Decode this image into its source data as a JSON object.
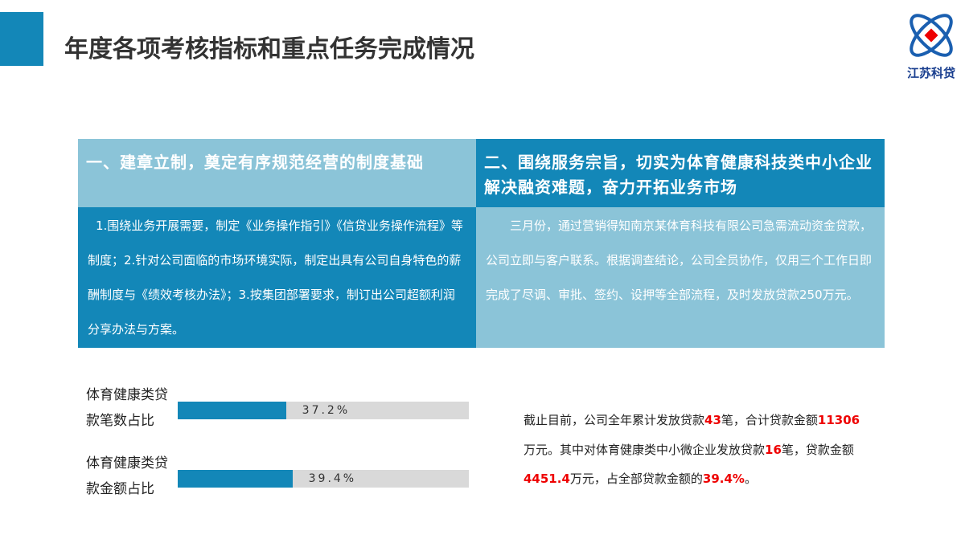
{
  "header": {
    "title": "年度各项考核指标和重点任务完成情况",
    "logo_text": "江苏科贷"
  },
  "sections": [
    {
      "heading": "一、建章立制，奠定有序规范经营的制度基础",
      "body": "1.围绕业务开展需要，制定《业务操作指引》《信贷业务操作流程》等制度；2.针对公司面临的市场环境实际，制定出具有公司自身特色的薪酬制度与《绩效考核办法》；3.按集团部署要求，制订出公司超额利润分享办法与方案。"
    },
    {
      "heading": "二、围绕服务宗旨，切实为体育健康科技类中小企业解决融资难题，奋力开拓业务市场",
      "body": "三月份，通过营销得知南京某体育科技有限公司急需流动资金贷款，公司立即与客户联系。根据调查结论，公司全员协作，仅用三个工作日即完成了尽调、审批、签约、设押等全部流程，及时发放贷款250万元。"
    }
  ],
  "progress": {
    "xlim": [
      0,
      100
    ],
    "items": [
      {
        "label": "体育健康类贷款笔数占比",
        "value": 37.2,
        "value_label": "37.2%"
      },
      {
        "label": "体育健康类贷款金额占比",
        "value": 39.4,
        "value_label": "39.4%"
      }
    ]
  },
  "summary": {
    "parts": [
      {
        "text": "截止目前，公司全年累计发放贷款",
        "emphasis": false
      },
      {
        "text": "43",
        "emphasis": true
      },
      {
        "text": "笔，合计贷款金额",
        "emphasis": false
      },
      {
        "text": "11306",
        "emphasis": true
      },
      {
        "text": "万元。其中对体育健康类中小微企业发放贷款",
        "emphasis": false
      },
      {
        "text": "16",
        "emphasis": true
      },
      {
        "text": "笔，贷款金额",
        "emphasis": false
      },
      {
        "text": "4451.4",
        "emphasis": true
      },
      {
        "text": "万元，占全部贷款金额的",
        "emphasis": false
      },
      {
        "text": "39.4%",
        "emphasis": true
      },
      {
        "text": "。",
        "emphasis": false
      }
    ]
  }
}
